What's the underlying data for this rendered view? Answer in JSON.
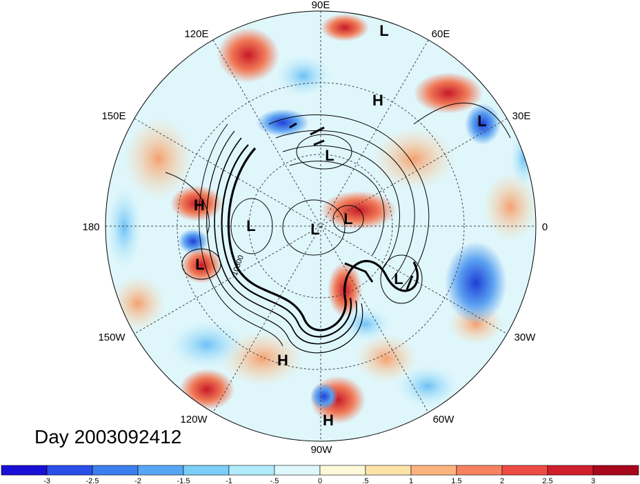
{
  "map": {
    "projection": "north-polar-stereographic",
    "longitude_labels": [
      {
        "text": "90E",
        "lon": 90
      },
      {
        "text": "60E",
        "lon": 60
      },
      {
        "text": "30E",
        "lon": 30
      },
      {
        "text": "0",
        "lon": 0
      },
      {
        "text": "30W",
        "lon": -30
      },
      {
        "text": "60W",
        "lon": -60
      },
      {
        "text": "90W",
        "lon": -90
      },
      {
        "text": "120W",
        "lon": -120
      },
      {
        "text": "150W",
        "lon": -150
      },
      {
        "text": "180",
        "lon": 180
      },
      {
        "text": "150E",
        "lon": 150
      },
      {
        "text": "120E",
        "lon": 120
      }
    ],
    "contour_label": "10800",
    "pressure_centers": [
      {
        "text": "L",
        "id": "l1"
      },
      {
        "text": "H",
        "id": "h1"
      },
      {
        "text": "L",
        "id": "l2"
      },
      {
        "text": "L",
        "id": "l3"
      },
      {
        "text": "H",
        "id": "h2"
      },
      {
        "text": "L",
        "id": "l4"
      },
      {
        "text": "L",
        "id": "l5"
      },
      {
        "text": "L",
        "id": "l6"
      },
      {
        "text": "L",
        "id": "l7"
      },
      {
        "text": "L",
        "id": "l8"
      },
      {
        "text": "H",
        "id": "h3"
      },
      {
        "text": "H",
        "id": "h4"
      }
    ]
  },
  "title": "Day 2003092412",
  "colorbar": {
    "colors": [
      "#1a0fd6",
      "#2a4ee8",
      "#3b7fee",
      "#56a6f3",
      "#7ccdf8",
      "#b0ecfc",
      "#dff8fc",
      "#fdf8d8",
      "#fde3a8",
      "#fbb47e",
      "#f58360",
      "#ee4a44",
      "#d01e2c",
      "#a8081c"
    ],
    "tick_labels": [
      "-3",
      "-2.5",
      "-2",
      "-1.5",
      "-1",
      "-.5",
      "0",
      ".5",
      "1",
      "1.5",
      "2",
      "2.5",
      "3"
    ]
  }
}
